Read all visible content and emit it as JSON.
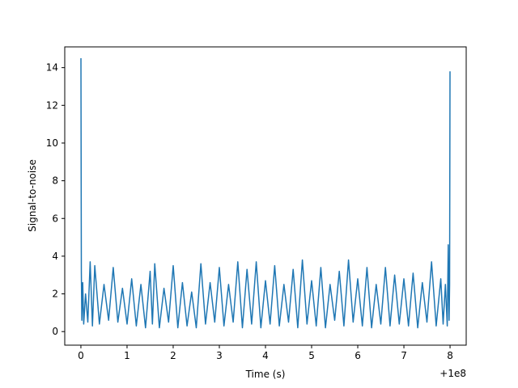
{
  "chart_data": {
    "type": "line",
    "title": "",
    "xlabel": "Time (s)",
    "ylabel": "Signal-to-noise",
    "offset_label": "+1e8",
    "xlim": [
      -0.35,
      8.35
    ],
    "ylim": [
      -0.72,
      15.1
    ],
    "x_ticks": [
      0,
      1,
      2,
      3,
      4,
      5,
      6,
      7,
      8
    ],
    "x_tick_labels": [
      "0",
      "1",
      "2",
      "3",
      "4",
      "5",
      "6",
      "7",
      "8"
    ],
    "y_ticks": [
      0,
      2,
      4,
      6,
      8,
      10,
      12,
      14
    ],
    "y_tick_labels": [
      "0",
      "2",
      "4",
      "6",
      "8",
      "10",
      "12",
      "14"
    ],
    "grid": false,
    "legend": "none",
    "series": [
      {
        "color": "#1f77b4",
        "x": [
          0.0,
          0.01,
          0.02,
          0.04,
          0.06,
          0.1,
          0.15,
          0.2,
          0.25,
          0.3,
          0.4,
          0.5,
          0.6,
          0.7,
          0.8,
          0.9,
          1.0,
          1.1,
          1.2,
          1.3,
          1.4,
          1.5,
          1.55,
          1.6,
          1.7,
          1.8,
          1.9,
          2.0,
          2.1,
          2.2,
          2.3,
          2.4,
          2.5,
          2.6,
          2.7,
          2.8,
          2.9,
          3.0,
          3.1,
          3.2,
          3.3,
          3.4,
          3.5,
          3.6,
          3.7,
          3.8,
          3.9,
          4.0,
          4.1,
          4.2,
          4.3,
          4.4,
          4.5,
          4.6,
          4.7,
          4.8,
          4.9,
          5.0,
          5.1,
          5.2,
          5.3,
          5.4,
          5.5,
          5.6,
          5.7,
          5.8,
          5.9,
          6.0,
          6.1,
          6.2,
          6.3,
          6.4,
          6.5,
          6.6,
          6.7,
          6.8,
          6.9,
          7.0,
          7.1,
          7.2,
          7.3,
          7.4,
          7.5,
          7.6,
          7.7,
          7.8,
          7.85,
          7.9,
          7.94,
          7.96,
          7.98,
          7.99,
          8.0
        ],
        "y": [
          14.5,
          3.2,
          0.6,
          2.6,
          0.4,
          2.0,
          0.5,
          3.7,
          0.3,
          3.5,
          0.4,
          2.5,
          0.6,
          3.4,
          0.5,
          2.3,
          0.4,
          2.8,
          0.3,
          2.5,
          0.2,
          3.2,
          0.4,
          3.6,
          0.2,
          2.3,
          0.5,
          3.5,
          0.2,
          2.6,
          0.3,
          2.1,
          0.2,
          3.6,
          0.4,
          2.6,
          0.5,
          3.4,
          0.3,
          2.5,
          0.5,
          3.7,
          0.2,
          3.3,
          0.4,
          3.7,
          0.2,
          2.7,
          0.4,
          3.5,
          0.3,
          2.5,
          0.5,
          3.3,
          0.2,
          3.8,
          0.4,
          2.7,
          0.3,
          3.4,
          0.2,
          2.5,
          0.6,
          3.2,
          0.3,
          3.8,
          0.5,
          2.8,
          0.3,
          3.4,
          0.2,
          2.5,
          0.4,
          3.4,
          0.3,
          3.0,
          0.4,
          2.8,
          0.3,
          3.1,
          0.2,
          2.6,
          0.5,
          3.7,
          0.3,
          2.8,
          0.4,
          2.5,
          0.3,
          4.6,
          0.6,
          2.5,
          13.8
        ]
      }
    ]
  }
}
